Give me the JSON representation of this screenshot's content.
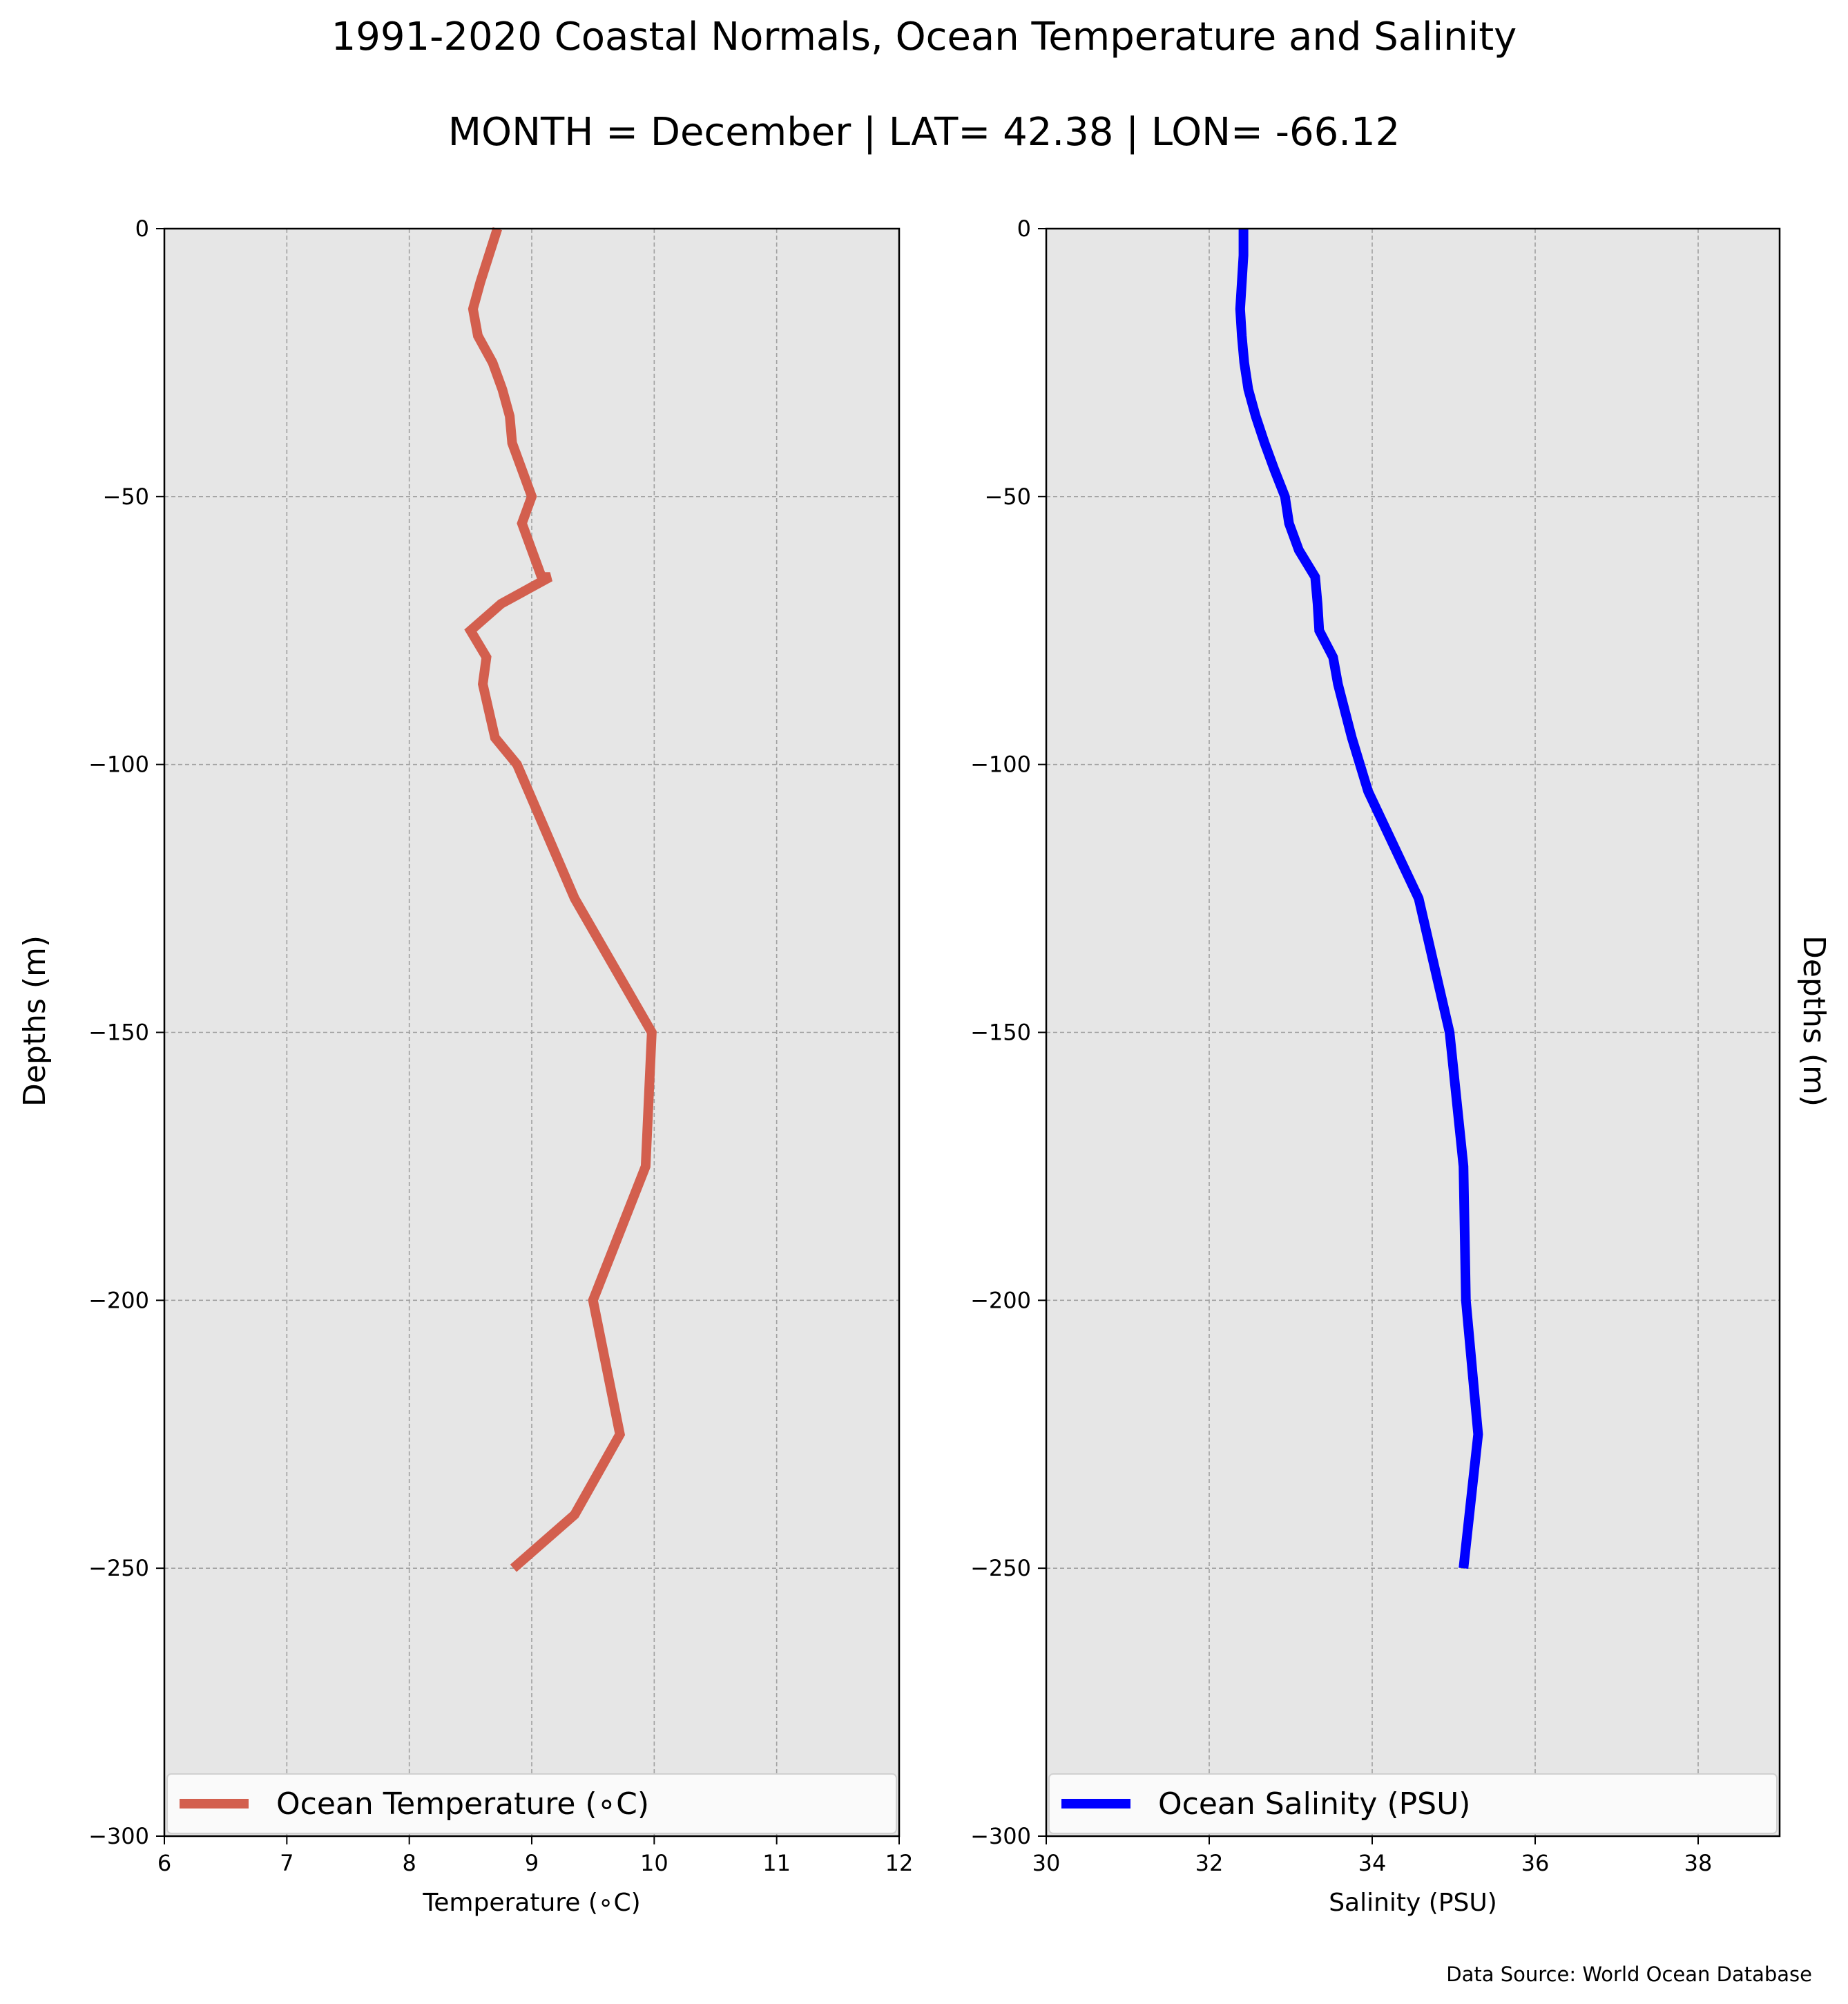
{
  "figure": {
    "title": "1991-2020 Coastal Normals, Ocean Temperature and Salinity",
    "subtitle": "MONTH = December | LAT= 42.38 | LON= -66.12",
    "source_note": "Data Source: World Ocean Database"
  },
  "chart_data": [
    {
      "type": "line",
      "orientation": "depth-profile",
      "xlabel": "Temperature ($^\\circ$C)",
      "xlabel_display": "Temperature (∘C)",
      "ylabel": "Depths (m)",
      "xlim": [
        6,
        12
      ],
      "ylim": [
        -300,
        0
      ],
      "xticks": [
        "6",
        "7",
        "8",
        "9",
        "10",
        "11",
        "12"
      ],
      "yticks": [
        "0",
        "−50",
        "−100",
        "−150",
        "−200",
        "−250",
        "−300"
      ],
      "grid": true,
      "background": "#e6e6e6",
      "legend_location": "lower center",
      "series": [
        {
          "name": "Ocean Temperature (∘C)",
          "color": "#d35f4e",
          "x": [
            8.72,
            8.65,
            8.58,
            8.52,
            8.56,
            8.68,
            8.76,
            8.82,
            8.84,
            8.92,
            9.0,
            8.92,
            9.0,
            9.08,
            9.15,
            8.75,
            8.5,
            8.63,
            8.6,
            8.65,
            8.7,
            8.88,
            9.35,
            9.98,
            9.93,
            9.5,
            9.72,
            9.35,
            8.85
          ],
          "depth": [
            0,
            -5,
            -10,
            -15,
            -20,
            -25,
            -30,
            -35,
            -40,
            -45,
            -50,
            -55,
            -60,
            -65,
            -65,
            -70,
            -75,
            -80,
            -85,
            -90,
            -95,
            -100,
            -125,
            -150,
            -175,
            -200,
            -225,
            -240,
            -250
          ]
        }
      ]
    },
    {
      "type": "line",
      "orientation": "depth-profile",
      "xlabel": "Salinity (PSU)",
      "ylabel": "Depths (m)",
      "xlim": [
        30,
        39
      ],
      "ylim": [
        -300,
        0
      ],
      "xticks": [
        "30",
        "32",
        "34",
        "36",
        "38"
      ],
      "yticks": [
        "0",
        "−50",
        "−100",
        "−150",
        "−200",
        "−250",
        "−300"
      ],
      "grid": true,
      "background": "#e6e6e6",
      "legend_location": "lower center",
      "series": [
        {
          "name": "Ocean Salinity (PSU)",
          "color": "#0000ff",
          "x": [
            32.42,
            32.42,
            32.4,
            32.38,
            32.4,
            32.43,
            32.48,
            32.57,
            32.68,
            32.8,
            32.93,
            32.98,
            33.1,
            33.3,
            33.33,
            33.35,
            33.52,
            33.58,
            33.75,
            33.95,
            34.57,
            34.95,
            35.12,
            35.15,
            35.3,
            35.12
          ],
          "depth": [
            0,
            -5,
            -10,
            -15,
            -20,
            -25,
            -30,
            -35,
            -40,
            -45,
            -50,
            -55,
            -60,
            -65,
            -70,
            -75,
            -80,
            -85,
            -95,
            -105,
            -125,
            -150,
            -175,
            -200,
            -225,
            -250
          ]
        }
      ]
    }
  ]
}
